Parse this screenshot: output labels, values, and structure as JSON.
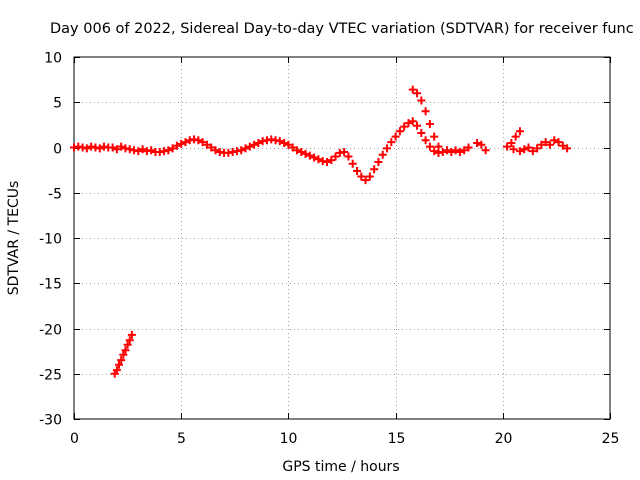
{
  "chart_data": {
    "type": "scatter",
    "title": "Day 006 of 2022, Sidereal Day-to-day VTEC variation (SDTVAR) for receiver func",
    "xlabel": "GPS time / hours",
    "ylabel": "SDTVAR / TECUs",
    "xlim": [
      0,
      25
    ],
    "ylim": [
      -30,
      10
    ],
    "xticks": [
      0,
      5,
      10,
      15,
      20,
      25
    ],
    "yticks": [
      10,
      5,
      0,
      -5,
      -10,
      -15,
      -20,
      -25,
      -30
    ],
    "grid": true,
    "marker": "+",
    "color": "#ff0000",
    "series": [
      {
        "name": "SDTVAR",
        "points": [
          [
            0.0,
            0.0
          ],
          [
            0.2,
            0.1
          ],
          [
            0.4,
            0.0
          ],
          [
            0.6,
            -0.1
          ],
          [
            0.8,
            0.1
          ],
          [
            1.0,
            0.0
          ],
          [
            1.2,
            -0.1
          ],
          [
            1.4,
            0.1
          ],
          [
            1.6,
            0.0
          ],
          [
            1.8,
            0.0
          ],
          [
            2.0,
            -0.2
          ],
          [
            2.2,
            0.1
          ],
          [
            2.4,
            -0.1
          ],
          [
            2.6,
            -0.2
          ],
          [
            2.8,
            -0.3
          ],
          [
            3.0,
            -0.4
          ],
          [
            3.2,
            -0.2
          ],
          [
            3.4,
            -0.4
          ],
          [
            3.6,
            -0.3
          ],
          [
            3.8,
            -0.5
          ],
          [
            4.0,
            -0.5
          ],
          [
            4.2,
            -0.4
          ],
          [
            4.4,
            -0.3
          ],
          [
            4.6,
            -0.1
          ],
          [
            4.8,
            0.2
          ],
          [
            5.0,
            0.4
          ],
          [
            5.2,
            0.6
          ],
          [
            5.4,
            0.8
          ],
          [
            5.6,
            0.9
          ],
          [
            5.8,
            0.8
          ],
          [
            6.0,
            0.6
          ],
          [
            6.2,
            0.3
          ],
          [
            6.4,
            0.0
          ],
          [
            6.6,
            -0.3
          ],
          [
            6.8,
            -0.5
          ],
          [
            7.0,
            -0.6
          ],
          [
            7.2,
            -0.6
          ],
          [
            7.4,
            -0.5
          ],
          [
            7.6,
            -0.4
          ],
          [
            7.8,
            -0.3
          ],
          [
            8.0,
            -0.1
          ],
          [
            8.2,
            0.1
          ],
          [
            8.4,
            0.3
          ],
          [
            8.6,
            0.5
          ],
          [
            8.8,
            0.7
          ],
          [
            9.0,
            0.8
          ],
          [
            9.2,
            0.9
          ],
          [
            9.4,
            0.8
          ],
          [
            9.6,
            0.7
          ],
          [
            9.8,
            0.5
          ],
          [
            10.0,
            0.3
          ],
          [
            10.2,
            0.0
          ],
          [
            10.4,
            -0.3
          ],
          [
            10.6,
            -0.5
          ],
          [
            10.8,
            -0.7
          ],
          [
            11.0,
            -0.9
          ],
          [
            11.2,
            -1.1
          ],
          [
            11.4,
            -1.3
          ],
          [
            11.6,
            -1.5
          ],
          [
            11.8,
            -1.6
          ],
          [
            12.0,
            -1.4
          ],
          [
            12.2,
            -1.0
          ],
          [
            12.4,
            -0.6
          ],
          [
            12.6,
            -0.5
          ],
          [
            12.8,
            -1.0
          ],
          [
            13.0,
            -1.8
          ],
          [
            13.2,
            -2.6
          ],
          [
            13.4,
            -3.2
          ],
          [
            13.6,
            -3.6
          ],
          [
            13.8,
            -3.2
          ],
          [
            14.0,
            -2.4
          ],
          [
            14.2,
            -1.6
          ],
          [
            14.4,
            -0.8
          ],
          [
            14.6,
            -0.1
          ],
          [
            14.8,
            0.6
          ],
          [
            15.0,
            1.2
          ],
          [
            15.2,
            1.8
          ],
          [
            15.4,
            2.3
          ],
          [
            15.6,
            2.7
          ],
          [
            15.8,
            2.9
          ],
          [
            16.0,
            2.4
          ],
          [
            16.2,
            1.6
          ],
          [
            16.4,
            0.8
          ],
          [
            16.6,
            0.1
          ],
          [
            16.8,
            -0.4
          ],
          [
            17.0,
            -0.6
          ],
          [
            17.2,
            -0.5
          ],
          [
            17.4,
            -0.3
          ],
          [
            17.6,
            -0.5
          ],
          [
            17.8,
            -0.3
          ],
          [
            18.0,
            -0.5
          ],
          [
            18.2,
            -0.3
          ],
          [
            18.4,
            0.0
          ],
          [
            15.8,
            6.4
          ],
          [
            16.0,
            6.0
          ],
          [
            16.2,
            5.2
          ],
          [
            16.4,
            4.0
          ],
          [
            16.6,
            2.6
          ],
          [
            16.8,
            1.2
          ],
          [
            17.0,
            0.1
          ],
          [
            18.8,
            0.5
          ],
          [
            19.0,
            0.3
          ],
          [
            19.2,
            -0.3
          ],
          [
            20.2,
            0.1
          ],
          [
            20.4,
            0.5
          ],
          [
            20.6,
            1.2
          ],
          [
            20.8,
            1.8
          ],
          [
            20.5,
            -0.2
          ],
          [
            20.8,
            -0.4
          ],
          [
            21.0,
            -0.2
          ],
          [
            21.2,
            0.0
          ],
          [
            21.4,
            -0.4
          ],
          [
            21.6,
            -0.1
          ],
          [
            21.8,
            0.3
          ],
          [
            22.0,
            0.6
          ],
          [
            22.2,
            0.3
          ],
          [
            22.4,
            0.8
          ],
          [
            22.6,
            0.6
          ],
          [
            22.8,
            0.2
          ],
          [
            23.0,
            -0.1
          ],
          [
            1.9,
            -25.0
          ],
          [
            2.0,
            -24.6
          ],
          [
            2.1,
            -24.0
          ],
          [
            2.2,
            -23.5
          ],
          [
            2.3,
            -22.9
          ],
          [
            2.4,
            -22.4
          ],
          [
            2.5,
            -21.8
          ],
          [
            2.6,
            -21.3
          ],
          [
            2.7,
            -20.7
          ]
        ]
      }
    ]
  }
}
